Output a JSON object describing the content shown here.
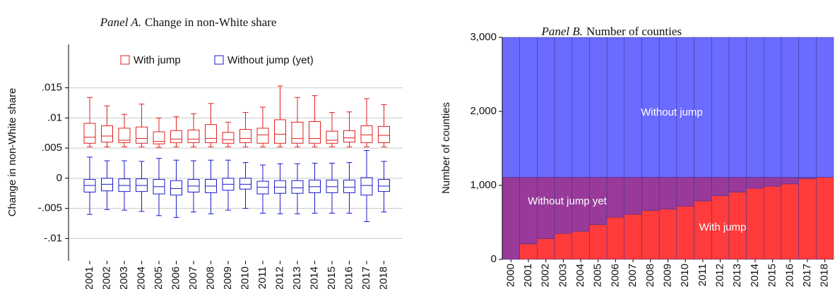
{
  "chart_data": [
    {
      "type": "box",
      "panel_label": "Panel A.",
      "title": "Change in non-White share",
      "y_label": "Change in non-White share",
      "categories": [
        "2001",
        "2002",
        "2003",
        "2004",
        "2005",
        "2006",
        "2007",
        "2008",
        "2009",
        "2010",
        "2011",
        "2012",
        "2013",
        "2014",
        "2015",
        "2016",
        "2017",
        "2018"
      ],
      "ylim": [
        -0.0137,
        0.0222
      ],
      "yticks": [
        {
          "value": -0.01,
          "label": "-.01"
        },
        {
          "value": -0.005,
          "label": "-.005"
        },
        0,
        {
          "value": 0.005,
          "label": ".005"
        },
        {
          "value": 0.01,
          "label": ".01"
        },
        {
          "value": 0.015,
          "label": ".015"
        }
      ],
      "grid": true,
      "series": [
        {
          "name": "With jump",
          "color": "#e0201f",
          "low": [
            0.0052,
            0.0052,
            0.0052,
            0.0052,
            0.0051,
            0.0052,
            0.0052,
            0.0052,
            0.0052,
            0.0052,
            0.0052,
            0.0052,
            0.0052,
            0.0052,
            0.0052,
            0.0052,
            0.0052,
            0.0052
          ],
          "q1": [
            0.0058,
            0.006,
            0.0059,
            0.0058,
            0.0057,
            0.0059,
            0.0059,
            0.0059,
            0.0058,
            0.0059,
            0.0058,
            0.0058,
            0.0058,
            0.0058,
            0.0058,
            0.006,
            0.0059,
            0.0059
          ],
          "median": [
            0.0068,
            0.007,
            0.0063,
            0.0066,
            0.0061,
            0.0065,
            0.0065,
            0.0066,
            0.0064,
            0.0066,
            0.0072,
            0.0073,
            0.0066,
            0.0066,
            0.0063,
            0.0067,
            0.0072,
            0.0071
          ],
          "q3": [
            0.0091,
            0.0087,
            0.0083,
            0.0085,
            0.0077,
            0.0079,
            0.008,
            0.0089,
            0.0076,
            0.0081,
            0.0083,
            0.0097,
            0.0093,
            0.0094,
            0.0078,
            0.0079,
            0.0087,
            0.0086
          ],
          "high": [
            0.0134,
            0.012,
            0.0106,
            0.0123,
            0.01,
            0.0102,
            0.0107,
            0.0124,
            0.0093,
            0.0109,
            0.0118,
            0.0153,
            0.0134,
            0.0137,
            0.0109,
            0.011,
            0.0132,
            0.0122
          ]
        },
        {
          "name": "Without jump (yet)",
          "color": "#1a1acc",
          "low": [
            -0.006,
            -0.0052,
            -0.0053,
            -0.0055,
            -0.0062,
            -0.0065,
            -0.0056,
            -0.0059,
            -0.0053,
            -0.005,
            -0.0058,
            -0.0059,
            -0.0059,
            -0.0058,
            -0.0058,
            -0.0058,
            -0.0072,
            -0.0056
          ],
          "q1": [
            -0.0023,
            -0.0021,
            -0.0022,
            -0.0022,
            -0.0026,
            -0.0028,
            -0.0023,
            -0.0024,
            -0.002,
            -0.0018,
            -0.0026,
            -0.0025,
            -0.0025,
            -0.0024,
            -0.0024,
            -0.0024,
            -0.0028,
            -0.0022
          ],
          "median": [
            -0.0012,
            -0.001,
            -0.0012,
            -0.0012,
            -0.0014,
            -0.0017,
            -0.0013,
            -0.0013,
            -0.001,
            -0.001,
            -0.0015,
            -0.0015,
            -0.0016,
            -0.0014,
            -0.0014,
            -0.0015,
            -0.0012,
            -0.0013
          ],
          "q3": [
            -0.0002,
            0.0,
            -0.0001,
            -0.0001,
            -0.0002,
            -0.0004,
            -0.0002,
            -0.0002,
            0.0,
            0.0,
            -0.0005,
            -0.0004,
            -0.0004,
            -0.0003,
            -0.0003,
            -0.0003,
            0.0001,
            -0.0002
          ],
          "high": [
            0.0035,
            0.0029,
            0.0029,
            0.0028,
            0.0033,
            0.003,
            0.0029,
            0.003,
            0.003,
            0.0026,
            0.0022,
            0.0024,
            0.0024,
            0.0025,
            0.0025,
            0.0026,
            0.0046,
            0.0028
          ]
        }
      ]
    },
    {
      "type": "stacked_bar",
      "panel_label": "Panel B.",
      "title": "Number of counties",
      "y_label": "Number of counties",
      "categories": [
        "2000",
        "2001",
        "2002",
        "2003",
        "2004",
        "2005",
        "2006",
        "2007",
        "2008",
        "2009",
        "2010",
        "2011",
        "2012",
        "2013",
        "2014",
        "2015",
        "2016",
        "2017",
        "2018"
      ],
      "ylim": [
        0,
        3000
      ],
      "yticks": [
        0,
        {
          "value": 1000,
          "label": "1,000"
        },
        {
          "value": 2000,
          "label": "2,000"
        },
        {
          "value": 3000,
          "label": "3,000"
        }
      ],
      "series": [
        {
          "name": "With jump",
          "color": "#ff3b3b",
          "values": [
            0,
            210,
            280,
            350,
            380,
            470,
            570,
            610,
            660,
            680,
            720,
            790,
            860,
            910,
            960,
            990,
            1020,
            1090,
            1110
          ]
        },
        {
          "name": "Without jump yet",
          "color": "#993a9a",
          "values": [
            1110,
            900,
            830,
            760,
            730,
            640,
            540,
            500,
            450,
            430,
            390,
            320,
            250,
            200,
            150,
            120,
            90,
            20,
            0
          ]
        },
        {
          "name": "Without jump",
          "color": "#6b6bff",
          "values": [
            1890,
            1890,
            1890,
            1890,
            1890,
            1890,
            1890,
            1890,
            1890,
            1890,
            1890,
            1890,
            1890,
            1890,
            1890,
            1890,
            1890,
            1890,
            1890
          ]
        }
      ]
    }
  ]
}
